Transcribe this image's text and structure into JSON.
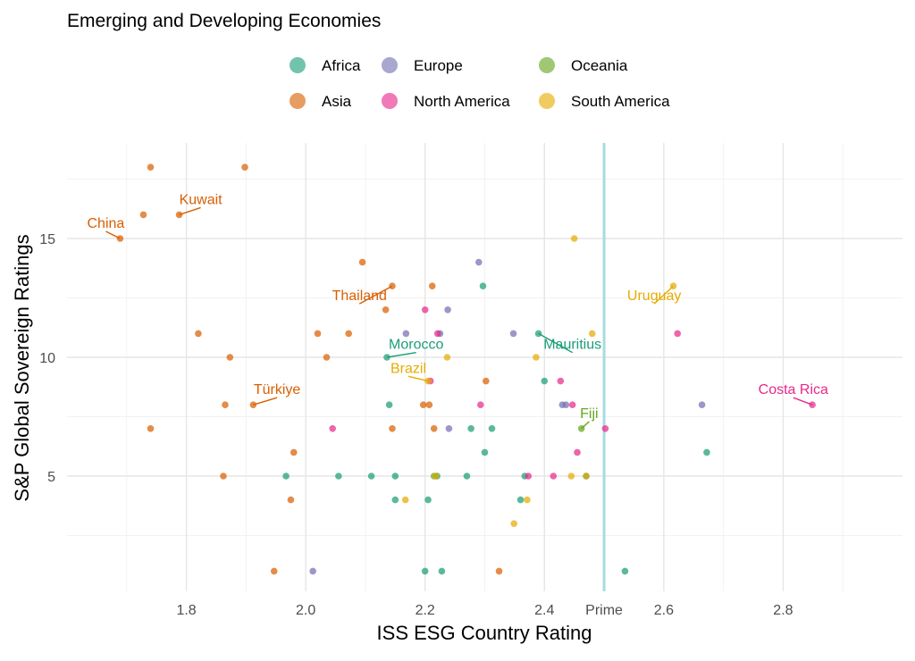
{
  "chart_data": {
    "type": "scatter",
    "title": "Emerging and Developing Economies",
    "xlabel": "ISS ESG Country Rating",
    "ylabel": "S&P Global Sovereign Ratings",
    "xlim": [
      1.6,
      3.0
    ],
    "ylim": [
      0,
      18.5
    ],
    "x_ticks": [
      {
        "value": 1.8,
        "label": "1.8"
      },
      {
        "value": 2.0,
        "label": "2.0"
      },
      {
        "value": 2.2,
        "label": "2.2"
      },
      {
        "value": 2.4,
        "label": "2.4"
      },
      {
        "value": 2.5,
        "label": "Prime"
      },
      {
        "value": 2.6,
        "label": "2.6"
      },
      {
        "value": 2.8,
        "label": "2.8"
      }
    ],
    "x_minor_gridlines": [
      1.7,
      1.9,
      2.1,
      2.3,
      2.7,
      2.9
    ],
    "y_ticks": [
      {
        "value": 5,
        "label": "5"
      },
      {
        "value": 10,
        "label": "10"
      },
      {
        "value": 15,
        "label": "15"
      }
    ],
    "y_minor_gridlines": [
      2.5,
      7.5,
      12.5,
      17.5
    ],
    "grid": true,
    "reference_line": {
      "x": 2.5,
      "label": "Prime",
      "color": "#a6dbe3"
    },
    "legend_position": "top",
    "series": [
      {
        "name": "Africa",
        "color": "#1b9e77",
        "points": [
          [
            2.136,
            10
          ],
          [
            2.39,
            11
          ],
          [
            2.297,
            13
          ],
          [
            2.14,
            8
          ],
          [
            2.4,
            9
          ],
          [
            2.3,
            6
          ],
          [
            2.277,
            7
          ],
          [
            2.312,
            7
          ],
          [
            1.967,
            5
          ],
          [
            2.055,
            5
          ],
          [
            2.11,
            5
          ],
          [
            2.15,
            5
          ],
          [
            2.22,
            5
          ],
          [
            2.27,
            5
          ],
          [
            2.367,
            5
          ],
          [
            2.47,
            5
          ],
          [
            2.15,
            4
          ],
          [
            2.205,
            4
          ],
          [
            2.36,
            4
          ],
          [
            2.2,
            1
          ],
          [
            2.228,
            1
          ],
          [
            2.535,
            1
          ],
          [
            2.672,
            6
          ]
        ]
      },
      {
        "name": "Asia",
        "color": "#d95f02",
        "points": [
          [
            1.689,
            15
          ],
          [
            1.728,
            16
          ],
          [
            1.788,
            16
          ],
          [
            1.74,
            18
          ],
          [
            1.898,
            18
          ],
          [
            2.095,
            14
          ],
          [
            2.145,
            13
          ],
          [
            2.212,
            13
          ],
          [
            2.134,
            12
          ],
          [
            1.82,
            11
          ],
          [
            2.02,
            11
          ],
          [
            2.072,
            11
          ],
          [
            1.873,
            10
          ],
          [
            2.035,
            10
          ],
          [
            1.865,
            8
          ],
          [
            1.912,
            8
          ],
          [
            2.197,
            8
          ],
          [
            2.207,
            8
          ],
          [
            2.302,
            9
          ],
          [
            1.74,
            7
          ],
          [
            2.145,
            7
          ],
          [
            1.98,
            6
          ],
          [
            1.862,
            5
          ],
          [
            1.975,
            4
          ],
          [
            1.947,
            1
          ],
          [
            2.324,
            1
          ],
          [
            2.215,
            7
          ]
        ]
      },
      {
        "name": "Europe",
        "color": "#7570b3",
        "points": [
          [
            2.29,
            14
          ],
          [
            2.168,
            11
          ],
          [
            2.225,
            11
          ],
          [
            2.238,
            12
          ],
          [
            2.348,
            11
          ],
          [
            2.43,
            8
          ],
          [
            2.436,
            8
          ],
          [
            2.24,
            7
          ],
          [
            2.664,
            8
          ],
          [
            2.012,
            1
          ]
        ]
      },
      {
        "name": "North America",
        "color": "#e7298a",
        "points": [
          [
            2.2,
            12
          ],
          [
            2.221,
            11
          ],
          [
            2.623,
            11
          ],
          [
            2.209,
            9
          ],
          [
            2.427,
            9
          ],
          [
            2.293,
            8
          ],
          [
            2.447,
            8
          ],
          [
            2.045,
            7
          ],
          [
            2.502,
            7
          ],
          [
            2.455,
            6
          ],
          [
            2.373,
            5
          ],
          [
            2.415,
            5
          ],
          [
            2.849,
            8
          ]
        ]
      },
      {
        "name": "Oceania",
        "color": "#66a61e",
        "points": [
          [
            2.462,
            7
          ],
          [
            2.215,
            5
          ]
        ]
      },
      {
        "name": "South America",
        "color": "#e6ab02",
        "points": [
          [
            2.45,
            15
          ],
          [
            2.616,
            13
          ],
          [
            2.48,
            11
          ],
          [
            2.237,
            10
          ],
          [
            2.386,
            10
          ],
          [
            2.205,
            9
          ],
          [
            2.47,
            5
          ],
          [
            2.445,
            5
          ],
          [
            2.371,
            4
          ],
          [
            2.167,
            4
          ],
          [
            2.349,
            3
          ],
          [
            2.218,
            5
          ]
        ]
      }
    ],
    "annotations": [
      {
        "text": "China",
        "series": "Asia",
        "x": 1.689,
        "y": 15,
        "tx": 1.665,
        "ty": 15.45,
        "anchor": "middle",
        "line": true
      },
      {
        "text": "Kuwait",
        "series": "Asia",
        "x": 1.788,
        "y": 16,
        "tx": 1.824,
        "ty": 16.45,
        "anchor": "middle",
        "line": true
      },
      {
        "text": "Thailand",
        "series": "Asia",
        "x": 2.145,
        "y": 13,
        "tx": 2.09,
        "ty": 12.4,
        "anchor": "middle",
        "line": true
      },
      {
        "text": "Türkiye",
        "series": "Asia",
        "x": 1.912,
        "y": 8,
        "tx": 1.952,
        "ty": 8.45,
        "anchor": "middle",
        "line": true
      },
      {
        "text": "Morocco",
        "series": "Africa",
        "x": 2.136,
        "y": 10,
        "tx": 2.185,
        "ty": 10.35,
        "anchor": "middle",
        "line": true
      },
      {
        "text": "Mauritius",
        "series": "Africa",
        "x": 2.39,
        "y": 11,
        "tx": 2.447,
        "ty": 10.35,
        "anchor": "middle",
        "line": true
      },
      {
        "text": "Brazil",
        "series": "South America",
        "x": 2.205,
        "y": 9,
        "tx": 2.172,
        "ty": 9.35,
        "anchor": "middle",
        "line": true
      },
      {
        "text": "Uruguay",
        "series": "South America",
        "x": 2.616,
        "y": 13,
        "tx": 2.584,
        "ty": 12.4,
        "anchor": "middle",
        "line": true
      },
      {
        "text": "Fiji",
        "series": "Oceania",
        "x": 2.462,
        "y": 7,
        "tx": 2.475,
        "ty": 7.45,
        "anchor": "middle",
        "line": true
      },
      {
        "text": "Costa Rica",
        "series": "North America",
        "x": 2.849,
        "y": 8,
        "tx": 2.817,
        "ty": 8.45,
        "anchor": "middle",
        "line": true
      }
    ]
  }
}
